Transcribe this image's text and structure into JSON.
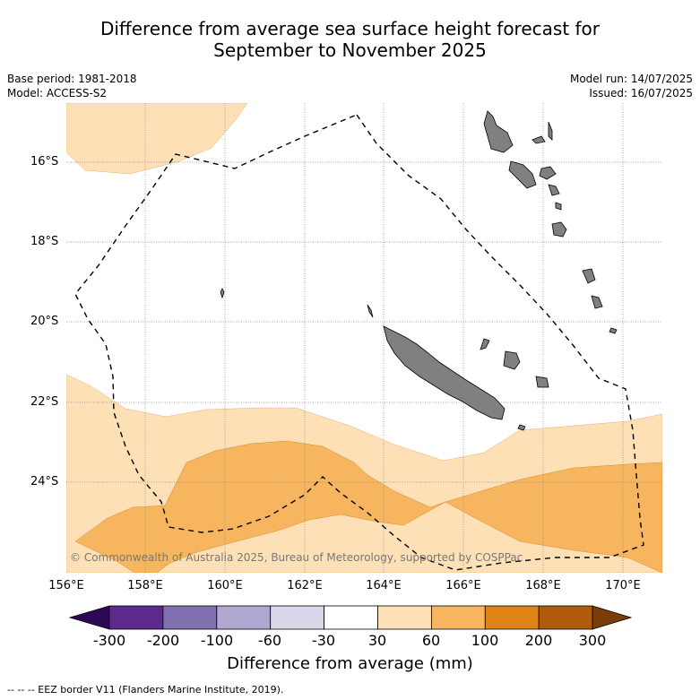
{
  "title_line1": "Difference from average sea surface height forecast for",
  "title_line2": "September to November 2025",
  "base_period": "Base period: 1981-2018",
  "model": "Model: ACCESS-S2",
  "model_run": "Model run: 14/07/2025",
  "issued": "Issued: 16/07/2025",
  "lat_labels": [
    "16°S",
    "18°S",
    "20°S",
    "22°S",
    "24°S"
  ],
  "lon_labels": [
    "156°E",
    "158°E",
    "160°E",
    "162°E",
    "164°E",
    "166°E",
    "168°E",
    "170°E"
  ],
  "copyright": "© Commonwealth of Australia 2025, Bureau of Meteorology, supported by COSPPac",
  "colorbar": {
    "ticks": [
      "-300",
      "-200",
      "-100",
      "-60",
      "-30",
      "30",
      "60",
      "100",
      "200",
      "300"
    ],
    "colors": [
      "#2e0854",
      "#5b2a8c",
      "#8070b0",
      "#b0a8d0",
      "#d8d8ea",
      "#ffffff",
      "#fde0b5",
      "#f8b560",
      "#e08418",
      "#b05a0c",
      "#7a3c08"
    ],
    "label": "Difference from average (mm)"
  },
  "footnote": "--  --  -- EEZ border V11 (Flanders Marine Institute, 2019).",
  "map_colors": {
    "ocean": "#ffffff",
    "band_30_60": "#fde0b5",
    "band_60_100": "#f8b560",
    "land": "#808080",
    "gridline": "#888888"
  }
}
